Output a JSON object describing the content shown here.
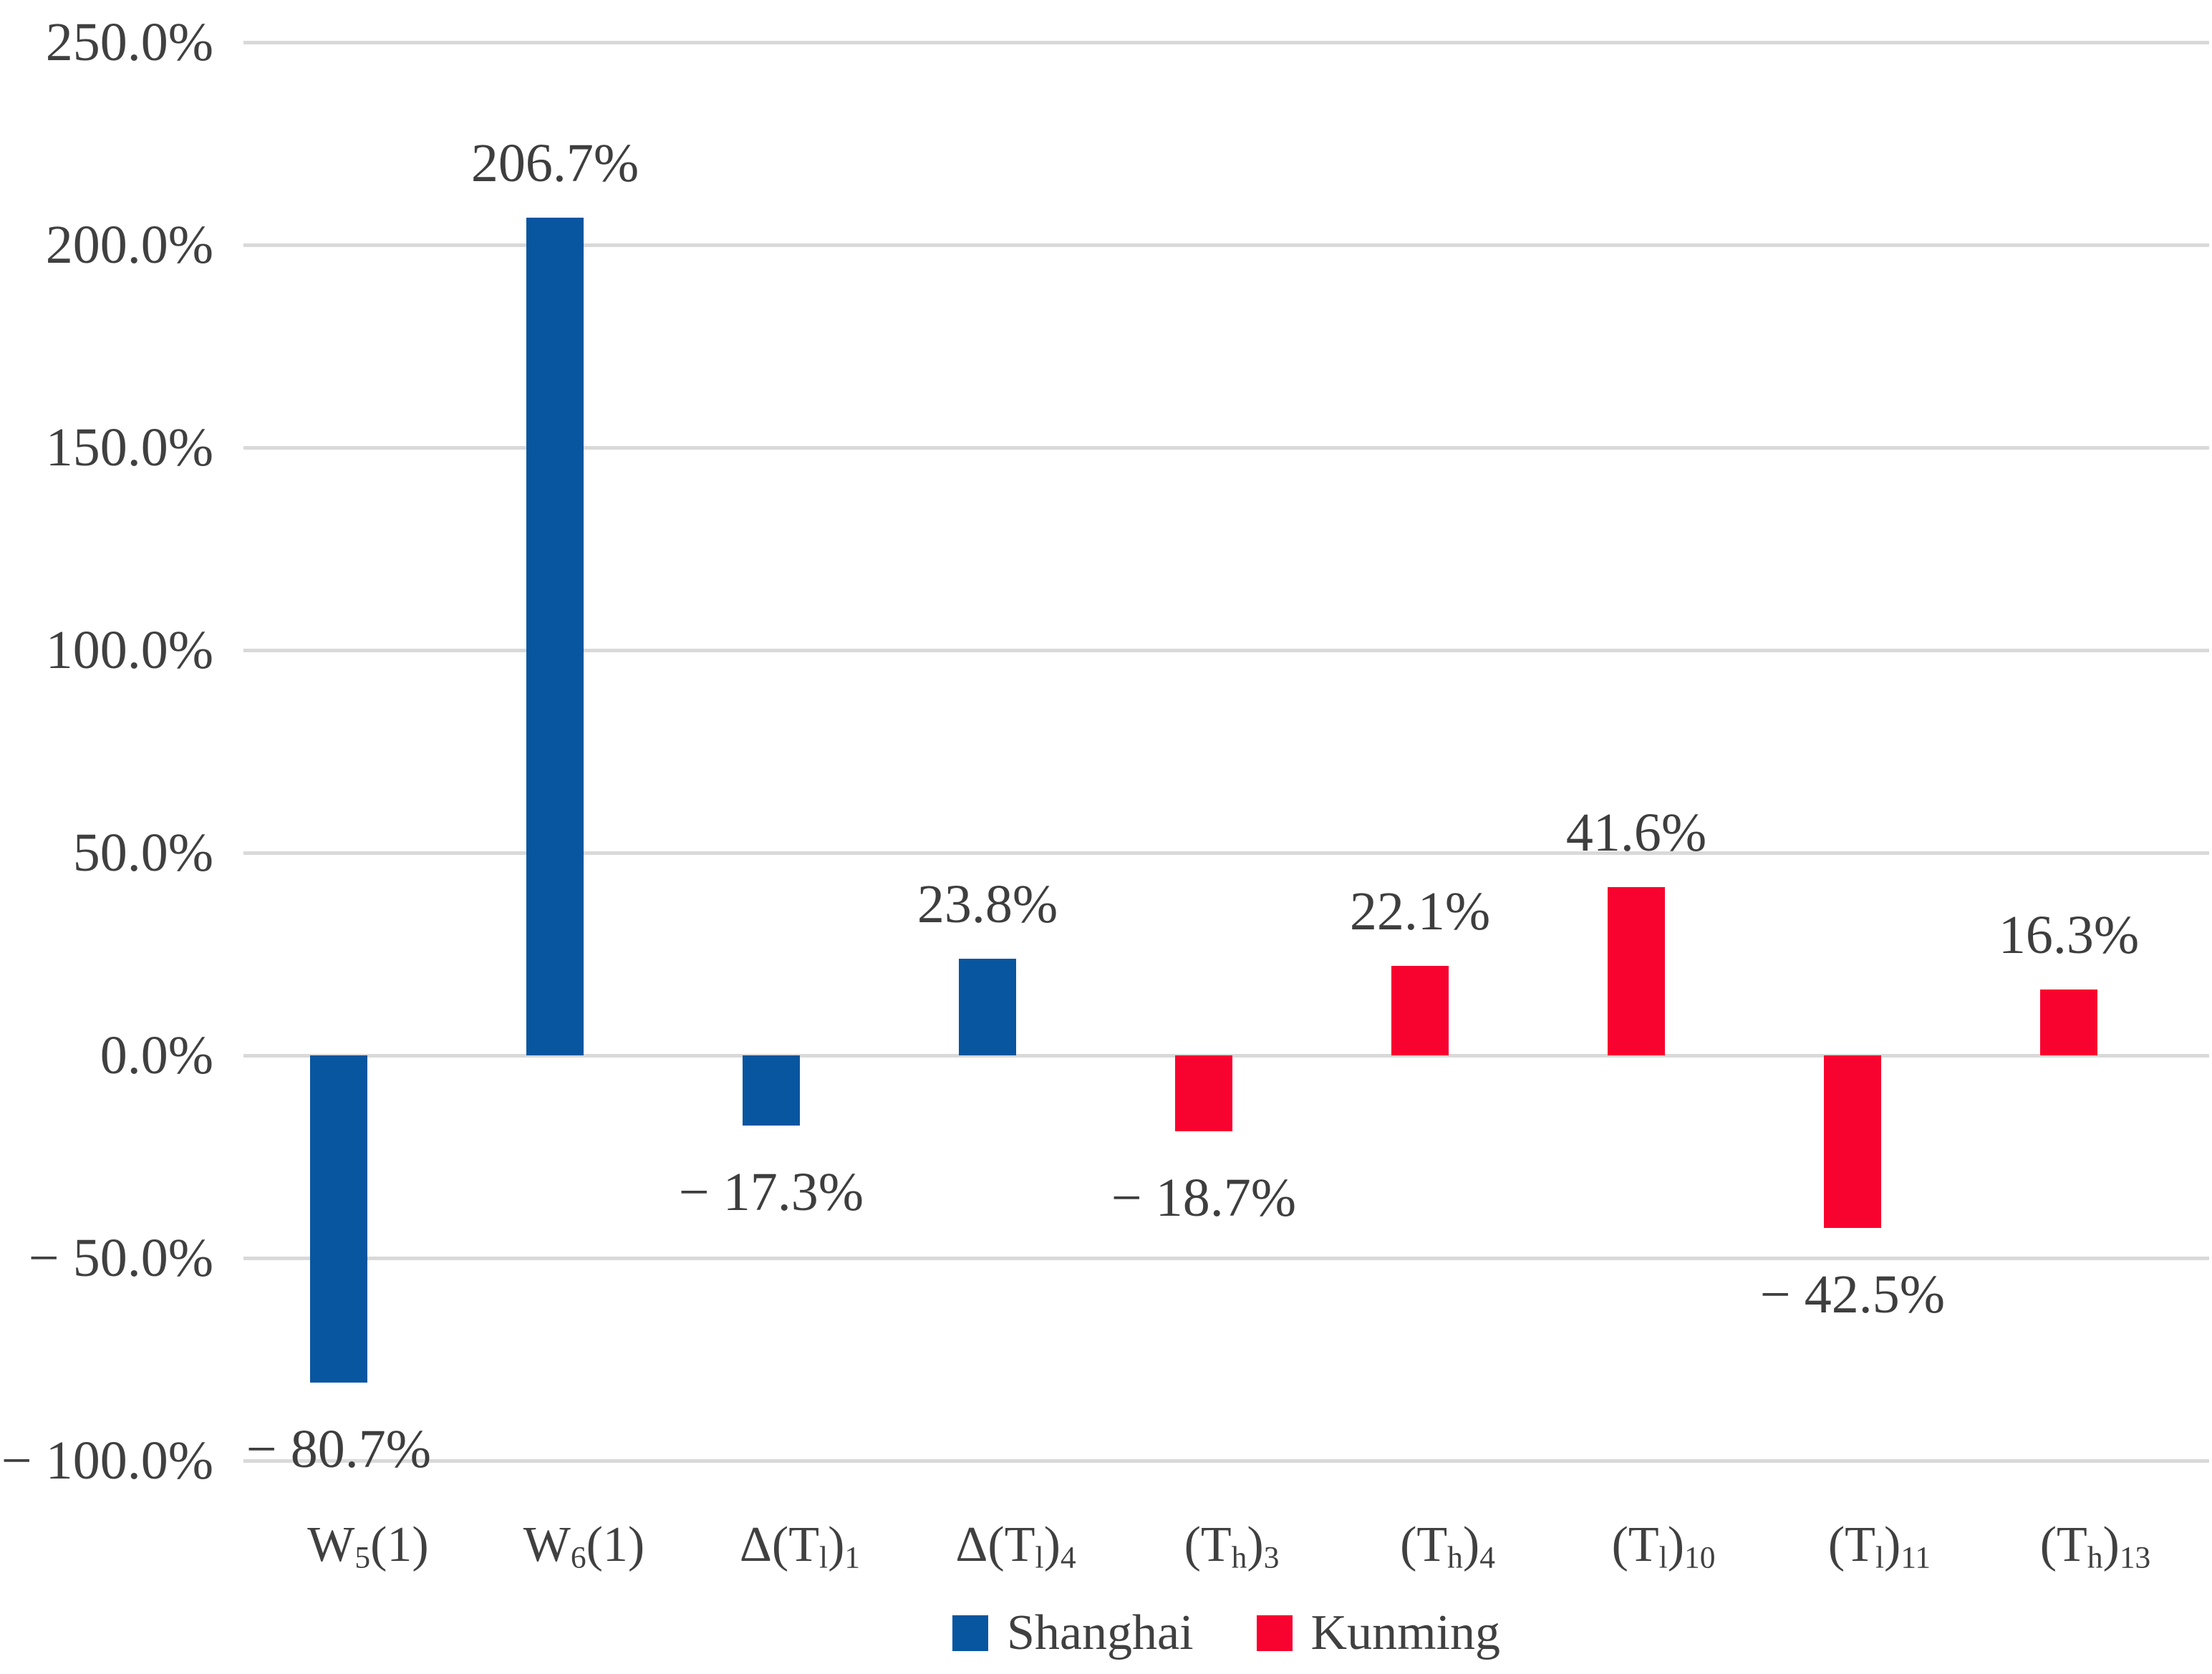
{
  "figure": {
    "background": "#FFFFFF"
  },
  "colors": {
    "grid": "#D9D9D9",
    "axis_text": "#404040",
    "label_text": "#3E3E3E"
  },
  "chart_data": {
    "type": "bar",
    "title": "",
    "xlabel": "",
    "ylabel": "",
    "ylim": [
      -100,
      250
    ],
    "grid": "horizontal-only",
    "legend_position": "bottom-center",
    "categories": [
      "W_{5}(1)",
      "W_{6}(1)",
      "Δ(T_{l})_{1}",
      "Δ(T_{l})_{4}",
      "(T_{h})_{3}",
      "(T_{h})_{4}",
      "(T_{l})_{10}",
      "(T_{l})_{11}",
      "(T_{h})_{13}"
    ],
    "bars": [
      {
        "category": "W_{5}(1)",
        "series": "Shanghai",
        "value": -80.7,
        "label": "− 80.7%"
      },
      {
        "category": "W_{6}(1)",
        "series": "Shanghai",
        "value": 206.7,
        "label": "206.7%"
      },
      {
        "category": "Δ(T_{l})_{1}",
        "series": "Shanghai",
        "value": -17.3,
        "label": "− 17.3%"
      },
      {
        "category": "Δ(T_{l})_{4}",
        "series": "Shanghai",
        "value": 23.8,
        "label": "23.8%"
      },
      {
        "category": "(T_{h})_{3}",
        "series": "Kunming",
        "value": -18.7,
        "label": "− 18.7%"
      },
      {
        "category": "(T_{h})_{4}",
        "series": "Kunming",
        "value": 22.1,
        "label": "22.1%"
      },
      {
        "category": "(T_{l})_{10}",
        "series": "Kunming",
        "value": 41.6,
        "label": "41.6%"
      },
      {
        "category": "(T_{l})_{11}",
        "series": "Kunming",
        "value": -42.5,
        "label": "− 42.5%"
      },
      {
        "category": "(T_{h})_{13}",
        "series": "Kunming",
        "value": 16.3,
        "label": "16.3%"
      }
    ],
    "series": [
      {
        "name": "Shanghai",
        "color": "#0856A0"
      },
      {
        "name": "Kunming",
        "color": "#F8022F"
      }
    ],
    "y_axis_ticks": [
      {
        "value": 250,
        "label": "250.0%"
      },
      {
        "value": 200,
        "label": "200.0%"
      },
      {
        "value": 150,
        "label": "150.0%"
      },
      {
        "value": 100,
        "label": "100.0%"
      },
      {
        "value": 50,
        "label": "50.0%"
      },
      {
        "value": 0,
        "label": "0.0%"
      },
      {
        "value": -50,
        "label": "− 50.0%"
      },
      {
        "value": -100,
        "label": "− 100.0%"
      }
    ]
  }
}
